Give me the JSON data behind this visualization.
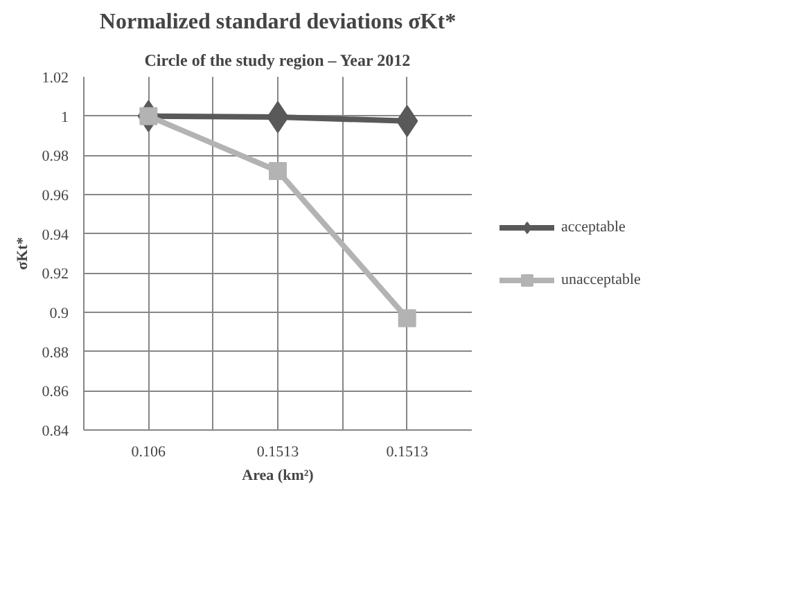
{
  "chart_data": {
    "type": "line",
    "title": "Normalized standard deviations σKt*",
    "subtitle": "Circle of the study region – Year 2012",
    "xlabel": "Area (km²)",
    "ylabel": "σKt*",
    "categories": [
      "0.106",
      "0.1513",
      "0.1513"
    ],
    "series": [
      {
        "name": "acceptable",
        "color": "#595959",
        "values": [
          1,
          0.9995,
          0.9975
        ],
        "marker": "diamond"
      },
      {
        "name": "unacceptable",
        "color": "#b3b3b3",
        "values": [
          1,
          0.972,
          0.897
        ],
        "marker": "square"
      }
    ],
    "ylim": [
      0.84,
      1.02
    ],
    "yticks": [
      0.84,
      0.86,
      0.88,
      0.9,
      0.92,
      0.94,
      0.96,
      0.98,
      1,
      1.02
    ],
    "grid": true,
    "legend": "right",
    "line_style": "solid"
  }
}
